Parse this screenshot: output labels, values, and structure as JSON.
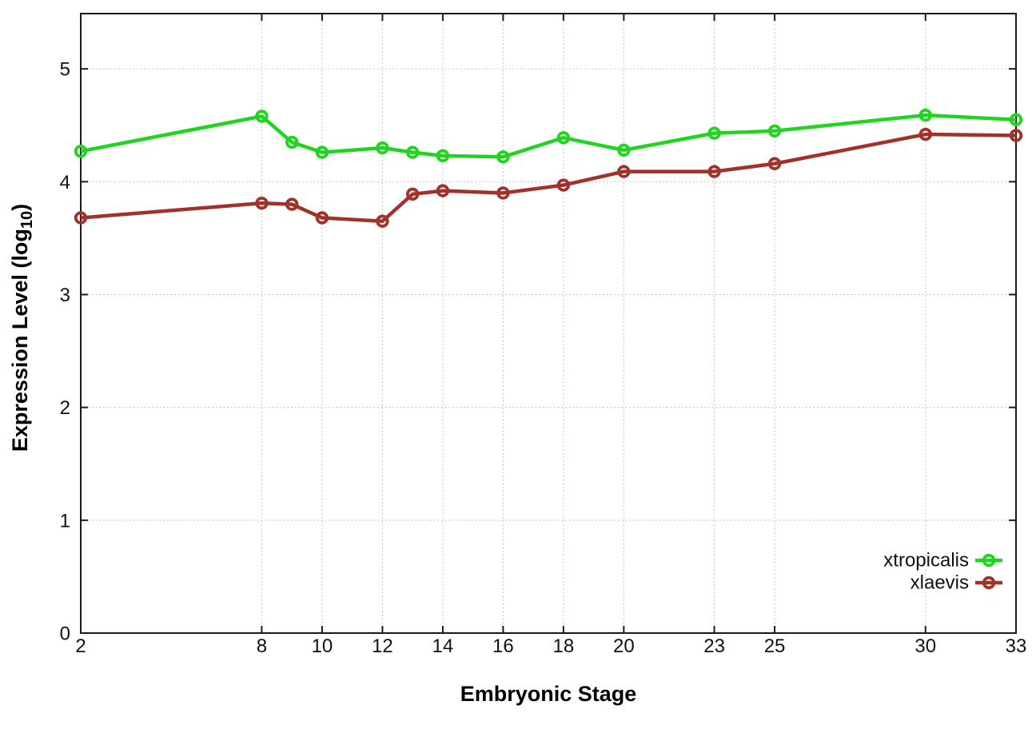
{
  "figure": {
    "ylabel_prefix": "Expression Level (log",
    "ylabel_subscript": "10",
    "ylabel_suffix": ")"
  },
  "chart_data": {
    "type": "line",
    "title": "",
    "xlabel": "Embryonic Stage",
    "ylabel": "Expression Level (log10)",
    "x": [
      2,
      8,
      9,
      10,
      12,
      13,
      14,
      16,
      18,
      20,
      23,
      25,
      30,
      33
    ],
    "xticks": [
      2,
      8,
      10,
      12,
      14,
      16,
      18,
      20,
      23,
      25,
      30,
      33
    ],
    "yticks": [
      0,
      1,
      2,
      3,
      4,
      5
    ],
    "xlim": [
      2,
      33
    ],
    "ylim": [
      0,
      5.49
    ],
    "grid": true,
    "grid_style": "dotted",
    "legend_position": "inside-bottom-right",
    "background_color": "#ffffff",
    "axis_color": "#1a1a1a",
    "grid_color": "#b0b0b0",
    "marker": "open-circle",
    "series": [
      {
        "name": "xtropicalis",
        "color": "#20d420",
        "values": [
          4.27,
          4.58,
          4.35,
          4.26,
          4.3,
          4.26,
          4.23,
          4.22,
          4.39,
          4.28,
          4.43,
          4.45,
          4.59,
          4.55
        ]
      },
      {
        "name": "xlaevis",
        "color": "#a0322a",
        "values": [
          3.68,
          3.81,
          3.8,
          3.68,
          3.65,
          3.89,
          3.92,
          3.9,
          3.97,
          4.09,
          4.09,
          4.16,
          4.42,
          4.41
        ]
      }
    ]
  }
}
